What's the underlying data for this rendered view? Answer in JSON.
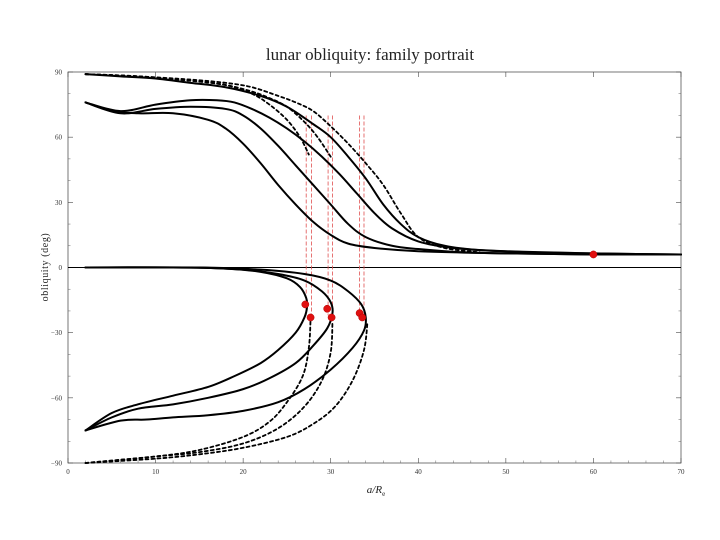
{
  "chart_data": {
    "type": "line",
    "title": "lunar obliquity: family portrait",
    "xlabel": "a/R",
    "xlabel_subscript": "e",
    "ylabel": "obliquity (deg)",
    "xlim": [
      0,
      70
    ],
    "ylim": [
      -90,
      90
    ],
    "x_ticks": [
      0,
      10,
      20,
      30,
      40,
      50,
      60,
      70
    ],
    "y_ticks": [
      90,
      60,
      30,
      0,
      -30,
      -60,
      -90
    ],
    "x_tick_labels": [
      "0",
      "10",
      "20",
      "30",
      "40",
      "50",
      "60",
      "70"
    ],
    "y_tick_labels": [
      "90",
      "60",
      "30",
      "0",
      "−30",
      "−60",
      "−90"
    ],
    "grid": false,
    "zero_line": true,
    "colors": {
      "curves": "#000000",
      "markers": "#e01010",
      "guides": "#e05050"
    },
    "series": [
      {
        "style": "solid",
        "points": [
          [
            2,
            76
          ],
          [
            5,
            72
          ],
          [
            8,
            71
          ],
          [
            12,
            71
          ],
          [
            16,
            68
          ],
          [
            18,
            64
          ],
          [
            20,
            57
          ],
          [
            22,
            48
          ],
          [
            24,
            38
          ],
          [
            26,
            29
          ],
          [
            28,
            21
          ],
          [
            30,
            15
          ],
          [
            32,
            11
          ],
          [
            35,
            9
          ],
          [
            40,
            7.5
          ],
          [
            50,
            6.5
          ],
          [
            60,
            6
          ],
          [
            70,
            6
          ]
        ]
      },
      {
        "style": "solid",
        "points": [
          [
            2,
            76
          ],
          [
            6,
            71
          ],
          [
            10,
            73
          ],
          [
            14,
            74
          ],
          [
            18,
            73
          ],
          [
            20,
            70
          ],
          [
            22,
            64
          ],
          [
            24,
            56
          ],
          [
            26,
            47
          ],
          [
            28,
            38
          ],
          [
            30,
            29
          ],
          [
            32,
            20
          ],
          [
            34,
            14
          ],
          [
            37,
            10
          ],
          [
            40,
            8.5
          ],
          [
            45,
            7
          ],
          [
            50,
            6.5
          ],
          [
            60,
            6
          ],
          [
            70,
            6
          ]
        ]
      },
      {
        "style": "solid",
        "points": [
          [
            2,
            76
          ],
          [
            6,
            72
          ],
          [
            10,
            75
          ],
          [
            14,
            77
          ],
          [
            17,
            77
          ],
          [
            19,
            76
          ],
          [
            21,
            73
          ],
          [
            23,
            69
          ],
          [
            25,
            64
          ],
          [
            27,
            58
          ],
          [
            29,
            51
          ],
          [
            31,
            43
          ],
          [
            33,
            34
          ],
          [
            35,
            25
          ],
          [
            37,
            18
          ],
          [
            40,
            12
          ],
          [
            44,
            9
          ],
          [
            50,
            7.5
          ],
          [
            60,
            6.5
          ],
          [
            70,
            6
          ]
        ]
      },
      {
        "style": "solid",
        "points": [
          [
            2,
            89
          ],
          [
            6,
            88
          ],
          [
            10,
            87
          ],
          [
            14,
            85
          ],
          [
            18,
            83
          ],
          [
            22,
            79
          ],
          [
            25,
            74
          ],
          [
            28,
            66
          ],
          [
            30,
            60
          ],
          [
            32,
            51
          ],
          [
            34,
            41
          ],
          [
            36,
            29
          ],
          [
            38,
            20
          ],
          [
            40,
            14
          ],
          [
            43,
            10
          ],
          [
            47,
            8
          ],
          [
            55,
            6.8
          ],
          [
            65,
            6.2
          ],
          [
            70,
            6
          ]
        ]
      },
      {
        "style": "dashed",
        "points": [
          [
            2,
            89
          ],
          [
            8,
            88
          ],
          [
            14,
            86
          ],
          [
            18,
            84
          ],
          [
            21,
            80
          ],
          [
            23,
            75
          ],
          [
            25,
            68
          ],
          [
            26.5,
            60
          ],
          [
            27.5,
            52
          ]
        ]
      },
      {
        "style": "dashed",
        "points": [
          [
            2,
            89
          ],
          [
            8,
            88
          ],
          [
            14,
            86
          ],
          [
            18,
            84
          ],
          [
            21,
            81
          ],
          [
            23,
            78
          ],
          [
            25,
            74
          ],
          [
            27,
            67
          ],
          [
            28.5,
            60
          ],
          [
            30,
            51
          ]
        ]
      },
      {
        "style": "dashed",
        "points": [
          [
            2,
            89
          ],
          [
            8,
            88
          ],
          [
            14,
            86.5
          ],
          [
            18,
            85
          ],
          [
            21,
            83
          ],
          [
            24,
            79
          ],
          [
            26,
            76
          ],
          [
            28,
            72
          ],
          [
            30,
            65
          ],
          [
            32,
            57
          ],
          [
            34,
            48
          ],
          [
            36,
            38
          ],
          [
            38,
            25
          ],
          [
            40,
            14
          ],
          [
            43,
            9
          ],
          [
            47,
            7
          ]
        ]
      },
      {
        "style": "solid",
        "points": [
          [
            2,
            0
          ],
          [
            12,
            0
          ],
          [
            18,
            -0.5
          ],
          [
            22,
            -2
          ],
          [
            25,
            -5
          ],
          [
            26.5,
            -9
          ],
          [
            27.2,
            -14
          ],
          [
            27.3,
            -18
          ],
          [
            27,
            -23
          ],
          [
            26,
            -30
          ],
          [
            24,
            -38
          ],
          [
            22,
            -44
          ],
          [
            19,
            -50
          ],
          [
            16,
            -55
          ],
          [
            12,
            -59
          ],
          [
            8,
            -63
          ],
          [
            5,
            -67
          ],
          [
            2,
            -75
          ]
        ]
      },
      {
        "style": "solid",
        "points": [
          [
            2,
            0
          ],
          [
            14,
            0
          ],
          [
            20,
            -1
          ],
          [
            24,
            -3
          ],
          [
            27,
            -6
          ],
          [
            29,
            -11
          ],
          [
            30,
            -16
          ],
          [
            30.2,
            -21
          ],
          [
            29.6,
            -28
          ],
          [
            28,
            -36
          ],
          [
            26,
            -44
          ],
          [
            23,
            -51
          ],
          [
            20,
            -56
          ],
          [
            16,
            -60
          ],
          [
            12,
            -63
          ],
          [
            8,
            -65
          ],
          [
            5,
            -69
          ],
          [
            2,
            -75
          ]
        ]
      },
      {
        "style": "solid",
        "points": [
          [
            2,
            0
          ],
          [
            15,
            0
          ],
          [
            22,
            -1
          ],
          [
            27,
            -3
          ],
          [
            30,
            -6
          ],
          [
            32,
            -11
          ],
          [
            33.5,
            -17
          ],
          [
            34,
            -23
          ],
          [
            33.8,
            -29
          ],
          [
            32.5,
            -37
          ],
          [
            30,
            -47
          ],
          [
            27,
            -56
          ],
          [
            24,
            -62
          ],
          [
            20,
            -66
          ],
          [
            16,
            -68
          ],
          [
            12,
            -69
          ],
          [
            9,
            -70
          ],
          [
            6,
            -70.5
          ],
          [
            2,
            -75
          ]
        ]
      },
      {
        "style": "dashed",
        "points": [
          [
            2,
            -90
          ],
          [
            10,
            -87
          ],
          [
            15,
            -84
          ],
          [
            20,
            -78
          ],
          [
            23,
            -71
          ],
          [
            25,
            -62
          ],
          [
            26.8,
            -50
          ],
          [
            27.5,
            -37
          ],
          [
            27.7,
            -24
          ]
        ]
      },
      {
        "style": "dashed",
        "points": [
          [
            2,
            -90
          ],
          [
            10,
            -87
          ],
          [
            15,
            -85
          ],
          [
            20,
            -81
          ],
          [
            24,
            -74
          ],
          [
            27,
            -64
          ],
          [
            29,
            -52
          ],
          [
            30,
            -39
          ],
          [
            30.2,
            -25
          ]
        ]
      },
      {
        "style": "dashed",
        "points": [
          [
            2,
            -90
          ],
          [
            10,
            -88
          ],
          [
            15,
            -86
          ],
          [
            20,
            -83
          ],
          [
            25,
            -78
          ],
          [
            28,
            -72
          ],
          [
            30.5,
            -64
          ],
          [
            32.5,
            -52
          ],
          [
            33.8,
            -38
          ],
          [
            34.2,
            -25
          ]
        ]
      }
    ],
    "guides_x": [
      27.2,
      27.8,
      29.7,
      30.2,
      33.3,
      33.8
    ],
    "guide_ranges": [
      [
        -22,
        70
      ],
      [
        -24,
        70
      ],
      [
        -22,
        70
      ],
      [
        -24,
        70
      ],
      [
        -22,
        70
      ],
      [
        -24,
        70
      ]
    ],
    "markers": [
      [
        60,
        6
      ],
      [
        27.1,
        -17
      ],
      [
        27.7,
        -23
      ],
      [
        29.6,
        -19
      ],
      [
        30.1,
        -23
      ],
      [
        33.3,
        -21
      ],
      [
        33.6,
        -23
      ]
    ]
  }
}
